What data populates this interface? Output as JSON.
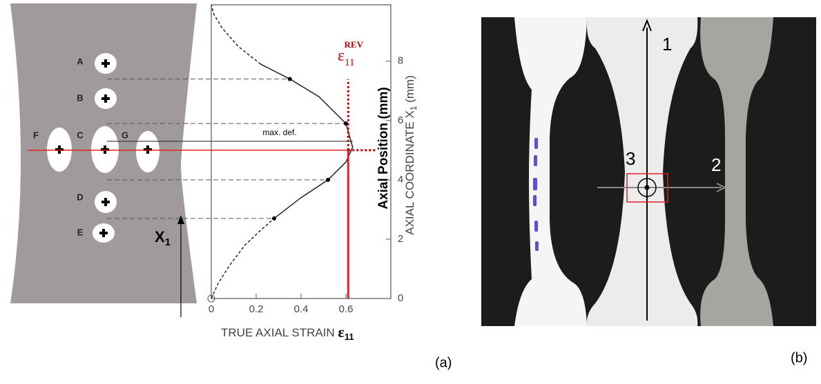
{
  "panel_a": {
    "holes": {
      "a": "A",
      "b": "B",
      "c": "C",
      "d": "D",
      "e": "E",
      "f": "F",
      "g": "G"
    },
    "x1_label": {
      "text": "X",
      "sub": "1"
    },
    "max_def": "max. def.",
    "eps_rev": {
      "text": "ε",
      "sub": "11",
      "sup": "REV"
    },
    "y_title_bold": "Axial Position (mm)",
    "y_title": {
      "text": "AXIAL COORDINATE X",
      "sub": "1",
      "after": " (mm)"
    },
    "x_title": {
      "text": "TRUE AXIAL STRAIN ",
      "symbol": "ε",
      "sub": "11"
    },
    "xlim": [
      0,
      0.8
    ],
    "ylim": [
      0,
      9.9
    ],
    "xticks": [
      0,
      0.2,
      0.4,
      0.6
    ],
    "yticks": [
      0,
      2,
      4,
      6,
      8
    ],
    "curve": {
      "lower_tail": {
        "x": [
          0,
          0.03,
          0.08,
          0.15,
          0.22,
          0.28
        ],
        "y": [
          0,
          0.5,
          1.1,
          1.8,
          2.3,
          2.7
        ]
      },
      "body": {
        "x": [
          0.28,
          0.4,
          0.52,
          0.6,
          0.63,
          0.6,
          0.48,
          0.35,
          0.22
        ],
        "y": [
          2.7,
          3.4,
          4.0,
          4.6,
          5.1,
          5.9,
          6.8,
          7.4,
          7.9
        ]
      },
      "upper_tail": {
        "x": [
          0.22,
          0.12,
          0.05,
          0.01,
          0
        ],
        "y": [
          7.9,
          8.5,
          9.1,
          9.6,
          9.9
        ]
      }
    },
    "markers": {
      "x": [
        0.28,
        0.52,
        0.6,
        0.35
      ],
      "y": [
        2.7,
        4.0,
        5.9,
        7.4
      ]
    },
    "rev_strain": 0.61,
    "rev_position": 5.0,
    "max_def_position": 5.3,
    "label": "(a)"
  },
  "panel_b": {
    "axis_1": "1",
    "axis_2": "2",
    "point_3": "3",
    "label": "(b)"
  }
}
